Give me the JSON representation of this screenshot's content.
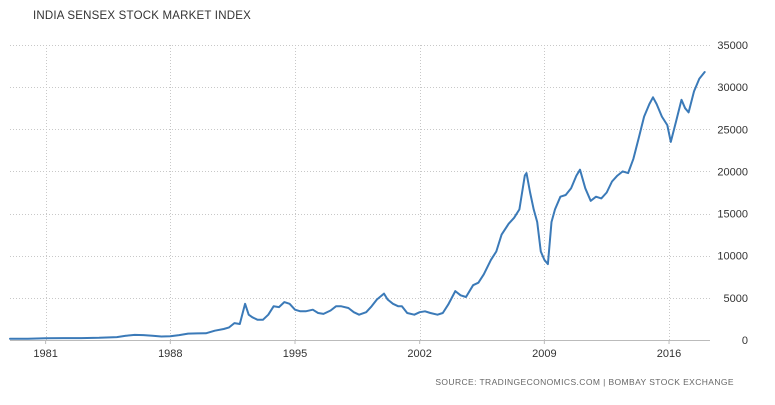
{
  "source_text": "SOURCE: TRADINGECONOMICS.COM | BOMBAY STOCK EXCHANGE",
  "chart_data": {
    "type": "line",
    "title": "INDIA SENSEX STOCK MARKET INDEX",
    "xlabel": "",
    "ylabel": "",
    "xlim": [
      1979.0,
      2018.3
    ],
    "ylim": [
      0,
      35000
    ],
    "x_ticks": [
      1981,
      1988,
      1995,
      2002,
      2009,
      2016
    ],
    "y_ticks": [
      0,
      5000,
      10000,
      15000,
      20000,
      25000,
      30000,
      35000
    ],
    "grid": true,
    "line_color": "#3b7ab8",
    "series": [
      {
        "x": [
          1979.0,
          1980.0,
          1981.0,
          1982.0,
          1983.0,
          1984.0,
          1985.0,
          1985.5,
          1986.0,
          1986.5,
          1987.0,
          1987.5,
          1988.0,
          1988.5,
          1989.0,
          1989.5,
          1990.0,
          1990.5,
          1991.0,
          1991.3,
          1991.6,
          1991.9,
          1992.2,
          1992.4,
          1992.6,
          1992.9,
          1993.2,
          1993.5,
          1993.8,
          1994.1,
          1994.4,
          1994.7,
          1995.0,
          1995.3,
          1995.6,
          1996.0,
          1996.3,
          1996.6,
          1997.0,
          1997.3,
          1997.6,
          1998.0,
          1998.3,
          1998.6,
          1999.0,
          1999.3,
          1999.6,
          2000.0,
          2000.2,
          2000.5,
          2000.8,
          2001.0,
          2001.3,
          2001.7,
          2002.0,
          2002.3,
          2002.6,
          2003.0,
          2003.3,
          2003.6,
          2004.0,
          2004.3,
          2004.6,
          2005.0,
          2005.3,
          2005.6,
          2006.0,
          2006.3,
          2006.6,
          2007.0,
          2007.3,
          2007.6,
          2007.9,
          2008.0,
          2008.2,
          2008.4,
          2008.6,
          2008.8,
          2009.0,
          2009.2,
          2009.4,
          2009.6,
          2009.9,
          2010.2,
          2010.5,
          2010.8,
          2011.0,
          2011.3,
          2011.6,
          2011.9,
          2012.2,
          2012.5,
          2012.8,
          2013.1,
          2013.4,
          2013.7,
          2014.0,
          2014.3,
          2014.6,
          2014.9,
          2015.1,
          2015.3,
          2015.6,
          2015.9,
          2016.1,
          2016.4,
          2016.7,
          2016.9,
          2017.1,
          2017.4,
          2017.7,
          2018.0
        ],
        "y": [
          140,
          160,
          200,
          230,
          230,
          260,
          350,
          500,
          600,
          580,
          500,
          420,
          440,
          580,
          760,
          780,
          800,
          1100,
          1300,
          1500,
          2000,
          1900,
          4300,
          3000,
          2700,
          2400,
          2400,
          3000,
          4000,
          3900,
          4500,
          4300,
          3600,
          3400,
          3400,
          3600,
          3200,
          3100,
          3500,
          4000,
          4000,
          3800,
          3300,
          3000,
          3300,
          4000,
          4800,
          5500,
          4800,
          4300,
          4000,
          4000,
          3200,
          3000,
          3300,
          3400,
          3200,
          3000,
          3200,
          4200,
          5800,
          5300,
          5100,
          6500,
          6800,
          7800,
          9500,
          10500,
          12500,
          13800,
          14500,
          15500,
          19500,
          19800,
          17500,
          15500,
          14000,
          10500,
          9500,
          9000,
          14000,
          15500,
          17000,
          17200,
          18000,
          19500,
          20200,
          18000,
          16500,
          17000,
          16800,
          17500,
          18800,
          19500,
          20000,
          19800,
          21500,
          24000,
          26500,
          28000,
          28800,
          28000,
          26500,
          25500,
          23500,
          26000,
          28500,
          27500,
          27000,
          29500,
          31000,
          31800
        ]
      }
    ]
  }
}
